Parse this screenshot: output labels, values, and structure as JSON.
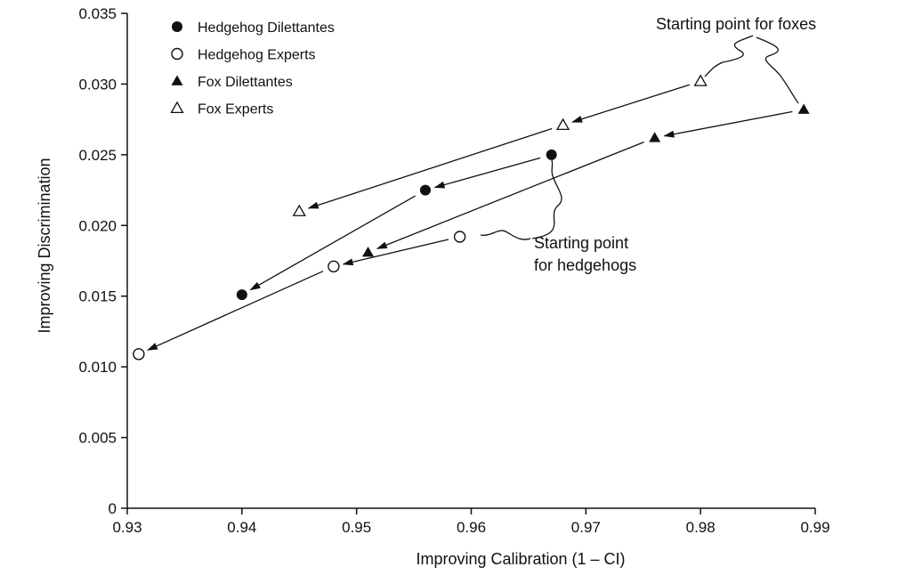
{
  "chart_data": {
    "type": "scatter",
    "title": "",
    "xlabel": "Improving Calibration (1 – CI)",
    "ylabel": "Improving Discrimination",
    "xlim": [
      0.93,
      0.99
    ],
    "ylim": [
      0,
      0.035
    ],
    "x_ticks": [
      "0.93",
      "0.94",
      "0.95",
      "0.96",
      "0.97",
      "0.98",
      "0.99"
    ],
    "y_ticks": [
      "0",
      "0.005",
      "0.010",
      "0.015",
      "0.020",
      "0.025",
      "0.030",
      "0.035"
    ],
    "grid": false,
    "legend_position": "top-left",
    "series": [
      {
        "name": "Hedgehog Dilettantes",
        "marker": "filled-circle",
        "points": [
          {
            "x": 0.967,
            "y": 0.025
          },
          {
            "x": 0.956,
            "y": 0.0225
          },
          {
            "x": 0.94,
            "y": 0.0151
          }
        ]
      },
      {
        "name": "Hedgehog Experts",
        "marker": "open-circle",
        "points": [
          {
            "x": 0.959,
            "y": 0.0192
          },
          {
            "x": 0.948,
            "y": 0.0171
          },
          {
            "x": 0.931,
            "y": 0.0109
          }
        ]
      },
      {
        "name": "Fox Dilettantes",
        "marker": "filled-triangle",
        "points": [
          {
            "x": 0.989,
            "y": 0.0282
          },
          {
            "x": 0.976,
            "y": 0.0262
          },
          {
            "x": 0.951,
            "y": 0.0181
          }
        ]
      },
      {
        "name": "Fox Experts",
        "marker": "open-triangle",
        "points": [
          {
            "x": 0.98,
            "y": 0.0302
          },
          {
            "x": 0.968,
            "y": 0.0271
          },
          {
            "x": 0.945,
            "y": 0.021
          }
        ]
      }
    ],
    "annotations": [
      {
        "text_lines": [
          "Starting point for foxes"
        ]
      },
      {
        "text_lines": [
          "Starting point",
          "for hedgehogs"
        ]
      }
    ],
    "colors": {
      "ink": "#111111",
      "background": "#ffffff"
    }
  }
}
